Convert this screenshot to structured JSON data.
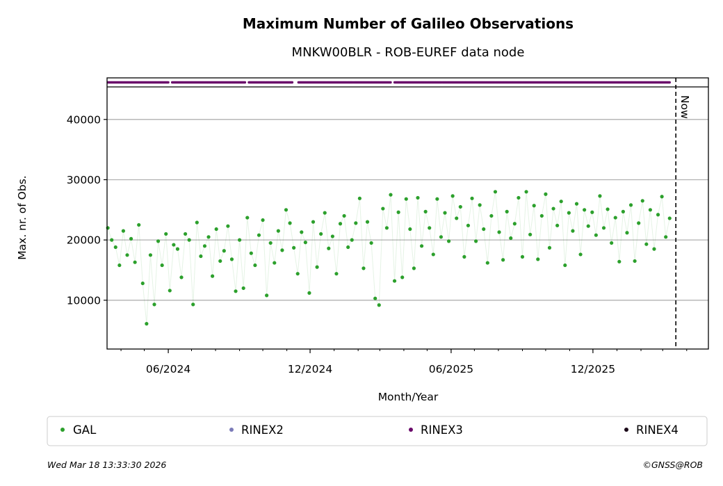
{
  "chart_data": {
    "type": "scatter",
    "title": "Maximum Number of Galileo Observations",
    "subtitle": "MNKW00BLR - ROB-EUREF data node",
    "xlabel": "Month/Year",
    "ylabel": "Max. nr. of Obs.",
    "xlim": [
      "2024-03-14",
      "2026-04-29"
    ],
    "ylim": [
      1900,
      45400
    ],
    "grid": "horizontal",
    "x_ticks": [
      {
        "date": "2024-06-01",
        "label": "06/2024"
      },
      {
        "date": "2024-12-01",
        "label": "12/2024"
      },
      {
        "date": "2025-06-01",
        "label": "06/2025"
      },
      {
        "date": "2025-12-01",
        "label": "12/2025"
      }
    ],
    "y_ticks": [
      {
        "value": 10000,
        "label": "10000"
      },
      {
        "value": 20000,
        "label": "20000"
      },
      {
        "value": 30000,
        "label": "30000"
      },
      {
        "value": 40000,
        "label": "40000"
      }
    ],
    "now_marker": {
      "date": "2026-03-18",
      "label": "Now"
    },
    "series": [
      {
        "name": "GAL",
        "color": "#2ca02c",
        "start_date": "2024-03-15",
        "step_days": 5,
        "values": [
          22000,
          20000,
          18800,
          15800,
          21500,
          17500,
          20200,
          16300,
          22500,
          12800,
          6100,
          17500,
          9300,
          19800,
          15800,
          21000,
          11600,
          19200,
          18500,
          13800,
          21000,
          20000,
          9300,
          22900,
          17300,
          19000,
          20500,
          14000,
          21800,
          16500,
          18200,
          22300,
          16800,
          11500,
          20000,
          12000,
          23700,
          17800,
          15800,
          20800,
          23300,
          10800,
          19500,
          16200,
          21500,
          18300,
          25000,
          22800,
          18700,
          14400,
          21300,
          19600,
          11200,
          23000,
          15500,
          21000,
          24500,
          18600,
          20600,
          14400,
          22700,
          24000,
          18800,
          20000,
          22800,
          26900,
          15300,
          23000,
          19500,
          10300,
          9200,
          25200,
          22000,
          27500,
          13200,
          24600,
          13800,
          26800,
          21800,
          15300,
          27000,
          19000,
          24700,
          22000,
          17600,
          26800,
          20500,
          24500,
          19800,
          27300,
          23600,
          25500,
          17200,
          22400,
          26900,
          19800,
          25800,
          21800,
          16200,
          24000,
          28000,
          21300,
          16700,
          24700,
          20300,
          22700,
          27000,
          17200,
          28000,
          20900,
          25700,
          16800,
          24000,
          27600,
          18700,
          25200,
          22400,
          26400,
          15800,
          24500,
          21500,
          26000,
          17600,
          25000,
          22300,
          24600,
          20800,
          27300,
          22000,
          25100,
          19500,
          23700,
          16400,
          24700,
          21200,
          25800,
          16500,
          22800,
          26500,
          19300,
          25000,
          18500,
          24200,
          27200,
          20500,
          23600
        ]
      },
      {
        "name": "RINEX3",
        "color": "#6a0a6a",
        "availability_ranges": [
          [
            "2024-03-15",
            "2024-06-01"
          ],
          [
            "2024-06-06",
            "2024-09-08"
          ],
          [
            "2024-09-13",
            "2024-11-08"
          ],
          [
            "2024-11-16",
            "2025-03-15"
          ],
          [
            "2025-03-20",
            "2026-03-10"
          ]
        ]
      }
    ],
    "legend": {
      "placement": "bottom",
      "entries": [
        {
          "label": "GAL",
          "color": "#2ca02c"
        },
        {
          "label": "RINEX2",
          "color": "#7b7bb8"
        },
        {
          "label": "RINEX3",
          "color": "#6a0a6a"
        },
        {
          "label": "RINEX4",
          "color": "#1a0818"
        }
      ]
    }
  },
  "footer": {
    "timestamp": "Wed Mar 18 13:33:30 2026",
    "copyright": "©GNSS@ROB"
  }
}
